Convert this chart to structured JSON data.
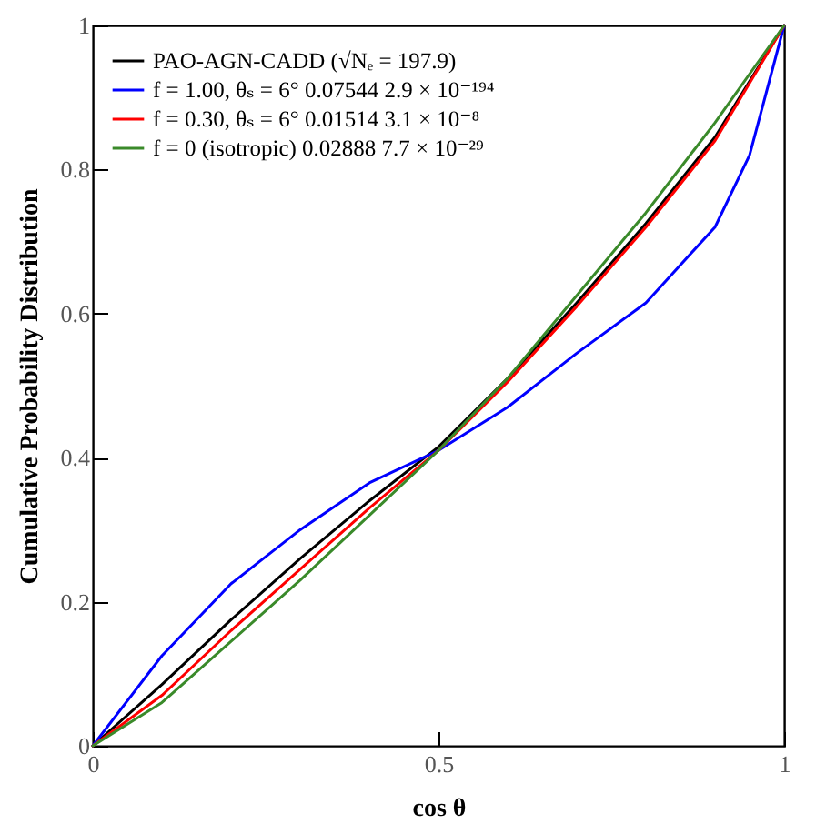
{
  "chart_data": {
    "type": "line",
    "xlabel": "cos θ",
    "ylabel": "Cumulative Probability Distribution",
    "x": [
      0,
      0.1,
      0.2,
      0.3,
      0.4,
      0.5,
      0.6,
      0.7,
      0.8,
      0.9,
      1
    ],
    "series": [
      {
        "name": "PAO-AGN-CADD (√Nₑ = 197.9)",
        "color": "#000000",
        "values": [
          0,
          0.085,
          0.175,
          0.26,
          0.34,
          0.415,
          0.51,
          0.615,
          0.725,
          0.845,
          1
        ]
      },
      {
        "name": "f = 1.00,  θₛ = 6° 0.07544 2.9 × 10⁻¹⁹⁴",
        "color": "#0000ff",
        "x": [
          0,
          0.1,
          0.2,
          0.3,
          0.4,
          0.5,
          0.6,
          0.7,
          0.8,
          0.9,
          0.95,
          1
        ],
        "values": [
          0,
          0.125,
          0.225,
          0.3,
          0.365,
          0.41,
          0.47,
          0.545,
          0.615,
          0.72,
          0.82,
          1
        ]
      },
      {
        "name": "f = 0.30,  θₛ = 6° 0.01514 3.1 × 10⁻⁸",
        "color": "#ff0000",
        "values": [
          0,
          0.07,
          0.16,
          0.245,
          0.33,
          0.41,
          0.505,
          0.61,
          0.72,
          0.84,
          1
        ]
      },
      {
        "name": "f = 0 (isotropic)  0.02888 7.7 × 10⁻²⁹",
        "color": "#3a8a2a",
        "values": [
          0,
          0.06,
          0.145,
          0.23,
          0.32,
          0.41,
          0.51,
          0.625,
          0.74,
          0.865,
          1
        ]
      }
    ],
    "xlim": [
      0,
      1
    ],
    "xticks": [
      0,
      0.5,
      1
    ],
    "ylim": [
      0,
      1
    ],
    "yticks": [
      0,
      0.2,
      0.4,
      0.6,
      0.8,
      1
    ],
    "legend": "top left",
    "grid": false
  }
}
